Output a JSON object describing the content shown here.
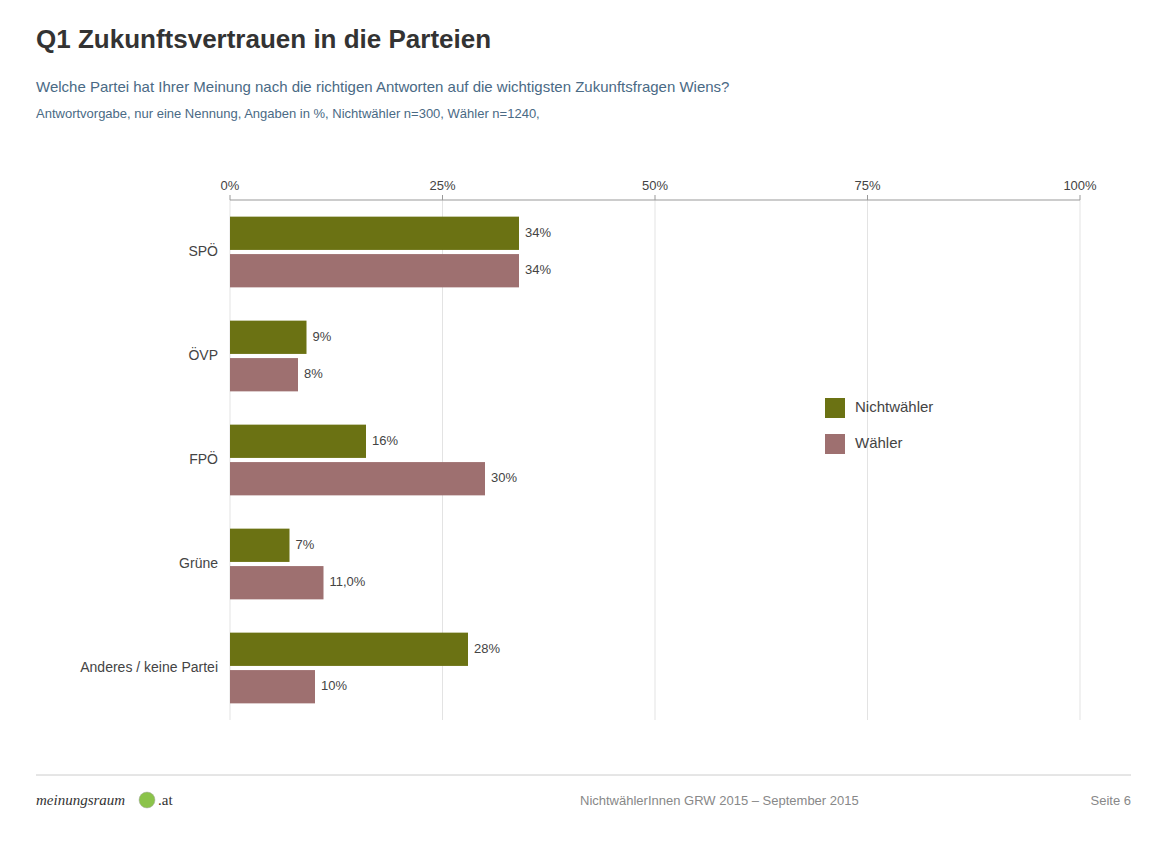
{
  "chart_data": {
    "type": "bar",
    "orientation": "horizontal",
    "title": "Q1 Zukunftsvertrauen in die Parteien",
    "subtitle": "Welche Partei hat Ihrer Meinung nach die richtigen Antworten auf die wichtigsten Zukunftsfragen Wiens?",
    "annotations": [
      "Antwortvorgabe, nur eine Nennung, Angaben in %, Nichtwähler n=300, Wähler n=1240,",
      "meinungsraum",
      ".at",
      "NichtwählerInnen GRW 2015 – September 2015",
      "Seite 6"
    ],
    "categories": [
      "SPÖ",
      "ÖVP",
      "FPÖ",
      "Grüne",
      "Anderes / keine Partei"
    ],
    "series": [
      {
        "name": "Nichtwähler",
        "color": "#6b7213",
        "values": [
          34,
          9,
          16,
          7,
          28
        ],
        "value_labels": [
          "34%",
          "9%",
          "16%",
          "7%",
          "28%"
        ]
      },
      {
        "name": "Wähler",
        "color": "#9e7070",
        "values": [
          34,
          8,
          30,
          11.0,
          10
        ],
        "value_labels": [
          "34%",
          "8%",
          "30%",
          "11,0%",
          "10%"
        ]
      }
    ],
    "xlim": [
      0,
      100
    ],
    "xticks": [
      {
        "value": 0,
        "label": "0%"
      },
      {
        "value": 25,
        "label": "25%"
      },
      {
        "value": 50,
        "label": "50%"
      },
      {
        "value": 75,
        "label": "75%"
      },
      {
        "value": 100,
        "label": "100%"
      }
    ],
    "grid": true,
    "legend": "right",
    "data_labels": true
  }
}
